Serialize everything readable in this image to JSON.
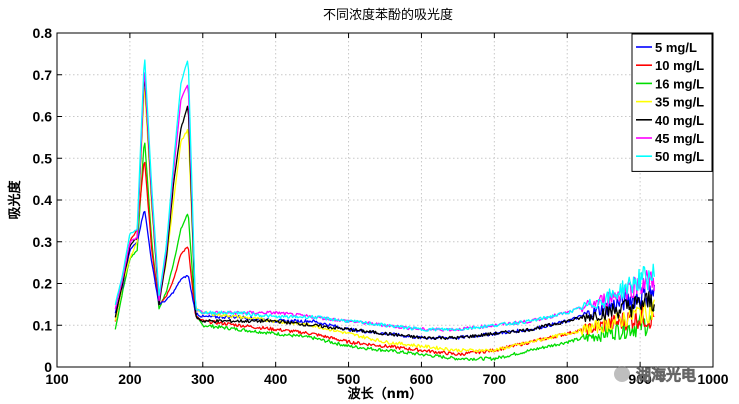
{
  "chart_data": {
    "type": "line",
    "title": "不同浓度苯酚的吸光度",
    "xlabel": "波长（nm）",
    "ylabel": "吸光度",
    "xlim": [
      100,
      1000
    ],
    "ylim": [
      0,
      0.8
    ],
    "xticks": [
      100,
      200,
      300,
      400,
      500,
      600,
      700,
      800,
      900,
      1000
    ],
    "yticks": [
      0,
      0.1,
      0.2,
      0.3,
      0.4,
      0.5,
      0.6,
      0.7,
      0.8
    ],
    "grid": true,
    "legend_position": "top-right",
    "x": [
      180,
      190,
      200,
      210,
      220,
      230,
      240,
      250,
      260,
      270,
      280,
      290,
      300,
      350,
      400,
      450,
      500,
      550,
      600,
      650,
      700,
      750,
      800,
      850,
      900,
      920
    ],
    "series": [
      {
        "name": "5 mg/L",
        "color": "#0000ff",
        "values": [
          0.13,
          0.19,
          0.28,
          0.3,
          0.38,
          0.25,
          0.15,
          0.16,
          0.18,
          0.21,
          0.22,
          0.13,
          0.12,
          0.12,
          0.11,
          0.11,
          0.09,
          0.08,
          0.07,
          0.07,
          0.08,
          0.09,
          0.11,
          0.14,
          0.17,
          0.18
        ]
      },
      {
        "name": "10 mg/L",
        "color": "#ff0000",
        "values": [
          0.11,
          0.2,
          0.3,
          0.33,
          0.5,
          0.28,
          0.15,
          0.17,
          0.21,
          0.27,
          0.29,
          0.12,
          0.11,
          0.1,
          0.09,
          0.08,
          0.06,
          0.05,
          0.04,
          0.03,
          0.04,
          0.06,
          0.08,
          0.1,
          0.12,
          0.12
        ]
      },
      {
        "name": "16 mg/L",
        "color": "#00dd00",
        "values": [
          0.09,
          0.18,
          0.26,
          0.28,
          0.55,
          0.3,
          0.14,
          0.18,
          0.25,
          0.33,
          0.37,
          0.12,
          0.1,
          0.09,
          0.08,
          0.07,
          0.05,
          0.04,
          0.03,
          0.02,
          0.02,
          0.04,
          0.06,
          0.08,
          0.1,
          0.11
        ]
      },
      {
        "name": "35 mg/L",
        "color": "#ffff00",
        "values": [
          0.11,
          0.2,
          0.26,
          0.3,
          0.68,
          0.38,
          0.16,
          0.25,
          0.4,
          0.54,
          0.57,
          0.14,
          0.13,
          0.12,
          0.11,
          0.1,
          0.08,
          0.06,
          0.05,
          0.04,
          0.04,
          0.06,
          0.08,
          0.1,
          0.13,
          0.14
        ]
      },
      {
        "name": "40 mg/L",
        "color": "#000000",
        "values": [
          0.12,
          0.2,
          0.29,
          0.31,
          0.71,
          0.4,
          0.15,
          0.26,
          0.44,
          0.57,
          0.63,
          0.12,
          0.11,
          0.11,
          0.11,
          0.1,
          0.09,
          0.08,
          0.07,
          0.07,
          0.08,
          0.09,
          0.11,
          0.13,
          0.15,
          0.16
        ]
      },
      {
        "name": "45 mg/L",
        "color": "#ff00ff",
        "values": [
          0.14,
          0.21,
          0.3,
          0.31,
          0.72,
          0.41,
          0.16,
          0.28,
          0.47,
          0.64,
          0.68,
          0.14,
          0.13,
          0.13,
          0.13,
          0.12,
          0.11,
          0.1,
          0.09,
          0.09,
          0.1,
          0.11,
          0.13,
          0.16,
          0.2,
          0.21
        ]
      },
      {
        "name": "50 mg/L",
        "color": "#00ffff",
        "values": [
          0.15,
          0.22,
          0.32,
          0.33,
          0.75,
          0.43,
          0.17,
          0.29,
          0.49,
          0.68,
          0.74,
          0.14,
          0.13,
          0.13,
          0.12,
          0.12,
          0.11,
          0.1,
          0.09,
          0.09,
          0.1,
          0.11,
          0.13,
          0.16,
          0.21,
          0.22
        ]
      }
    ]
  },
  "watermark": {
    "text": "湖海光电"
  }
}
